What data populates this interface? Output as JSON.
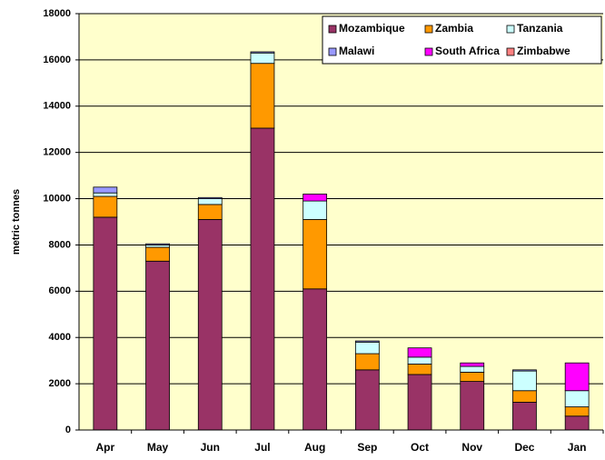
{
  "chart_data": {
    "type": "stacked_bar",
    "y_label": "metric tonnes",
    "categories": [
      "Apr",
      "May",
      "Jun",
      "Jul",
      "Aug",
      "Sep",
      "Oct",
      "Nov",
      "Dec",
      "Jan"
    ],
    "series": [
      {
        "name": "Mozambique",
        "color": "#993366",
        "values": [
          9200,
          7300,
          9100,
          13050,
          6100,
          2600,
          2400,
          2100,
          1200,
          600
        ]
      },
      {
        "name": "Zambia",
        "color": "#ff9900",
        "values": [
          900,
          600,
          650,
          2800,
          3000,
          700,
          450,
          400,
          500,
          400
        ]
      },
      {
        "name": "Tanzania",
        "color": "#ccffff",
        "values": [
          150,
          100,
          250,
          450,
          800,
          500,
          300,
          250,
          850,
          700
        ]
      },
      {
        "name": "Malawi",
        "color": "#9999ff",
        "values": [
          250,
          50,
          50,
          50,
          0,
          50,
          0,
          0,
          50,
          0
        ]
      },
      {
        "name": "South Africa",
        "color": "#ff00ff",
        "values": [
          0,
          0,
          0,
          0,
          300,
          0,
          400,
          150,
          0,
          1200
        ]
      },
      {
        "name": "Zimbabwe",
        "color": "#ff8080",
        "values": [
          0,
          0,
          0,
          0,
          0,
          0,
          0,
          0,
          0,
          0
        ]
      }
    ],
    "ylim": [
      0,
      18000
    ],
    "yticks": [
      0,
      2000,
      4000,
      6000,
      8000,
      10000,
      12000,
      14000,
      16000,
      18000
    ],
    "grid": true,
    "plot_background": "#ffffcc",
    "legend": "top-right"
  }
}
